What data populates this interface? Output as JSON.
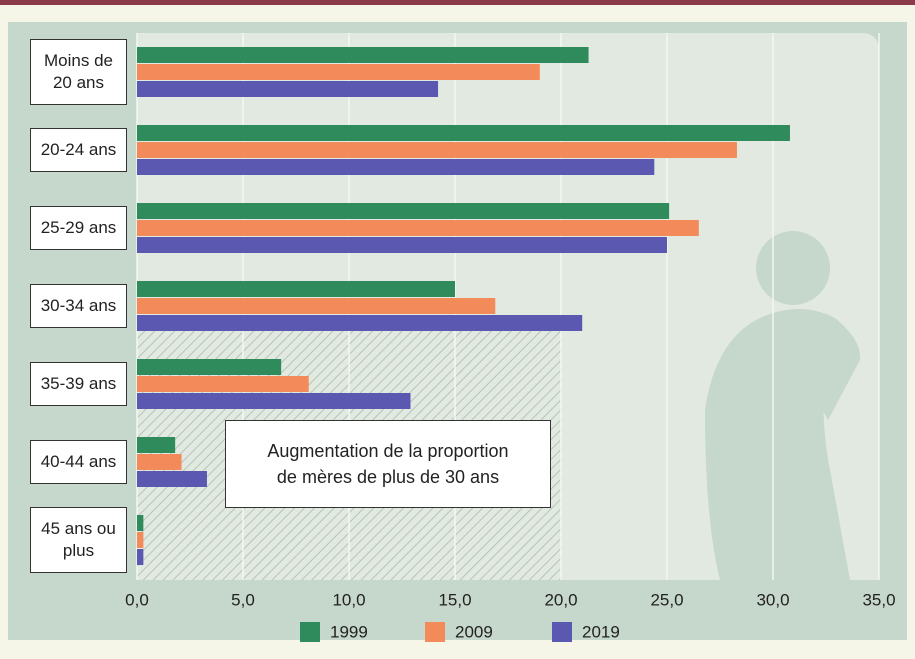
{
  "chart_data": {
    "type": "hbar",
    "categories": [
      "Moins de 20 ans",
      "20-24 ans",
      "25-29 ans",
      "30-34 ans",
      "35-39 ans",
      "40-44 ans",
      "45 ans ou plus"
    ],
    "series": [
      {
        "name": "1999",
        "color": "#2f8a5c",
        "values": [
          21.3,
          30.8,
          25.1,
          15.0,
          6.8,
          1.8,
          0.3
        ]
      },
      {
        "name": "2009",
        "color": "#f28a5a",
        "values": [
          19.0,
          28.3,
          26.5,
          16.9,
          8.1,
          2.1,
          0.3
        ]
      },
      {
        "name": "2019",
        "color": "#5a58b0",
        "values": [
          14.2,
          24.4,
          25.0,
          21.0,
          12.9,
          3.3,
          0.3
        ]
      }
    ],
    "xlim": [
      0,
      35
    ],
    "xticks": [
      {
        "value": 0,
        "label": "0,0"
      },
      {
        "value": 5,
        "label": "5,0"
      },
      {
        "value": 10,
        "label": "10,0"
      },
      {
        "value": 15,
        "label": "15,0"
      },
      {
        "value": 20,
        "label": "20,0"
      },
      {
        "value": 25,
        "label": "25,0"
      },
      {
        "value": 30,
        "label": "30,0"
      },
      {
        "value": 35,
        "label": "35,0"
      }
    ],
    "grid": true,
    "annotation": [
      "Augmentation de la proportion",
      "de mères de plus de 30 ans"
    ]
  }
}
